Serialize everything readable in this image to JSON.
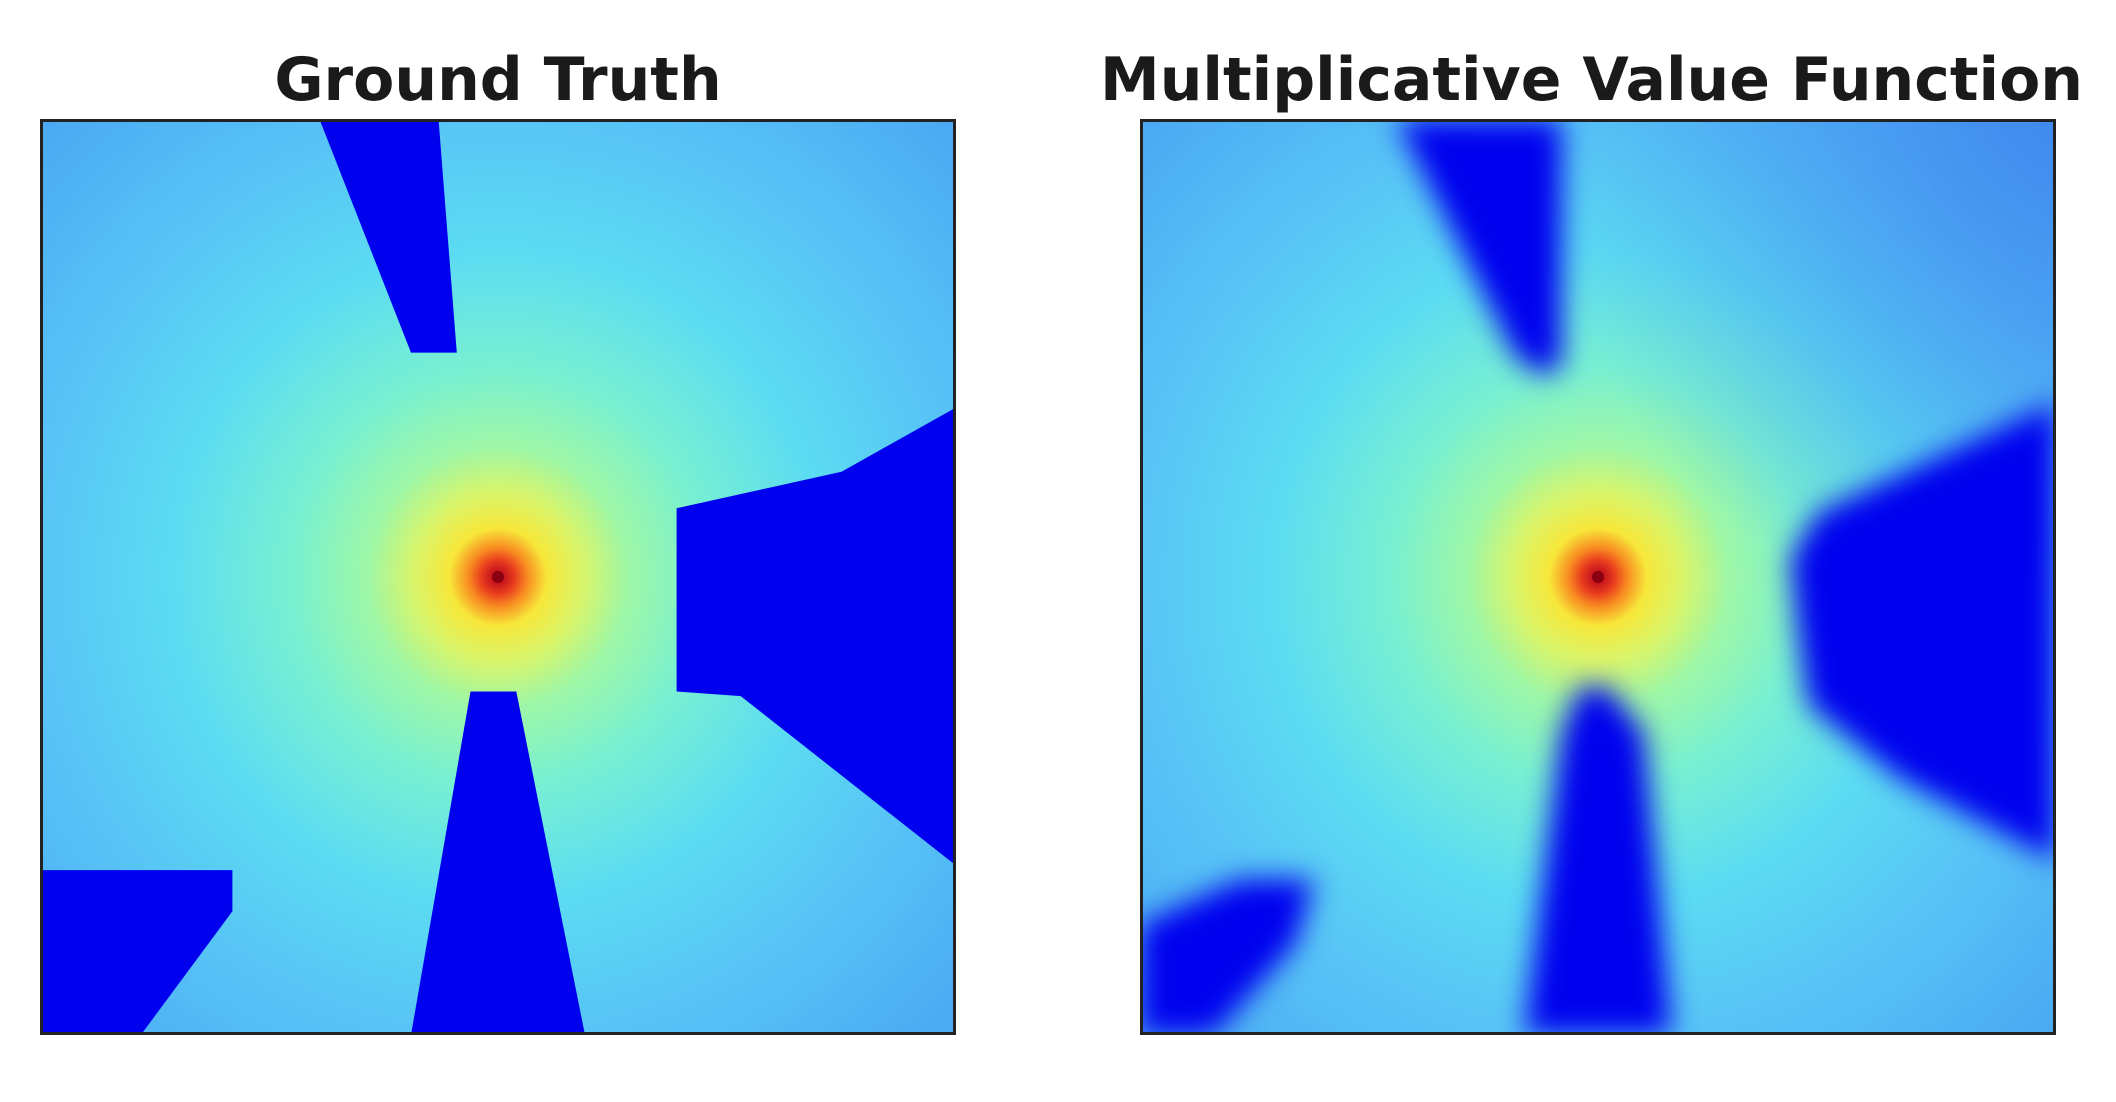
{
  "chart_data": [
    {
      "type": "heatmap",
      "title": "Ground Truth",
      "colormap": "jet",
      "goal": {
        "x": 0.5,
        "y": 0.5
      },
      "obstacle_color": "#0000ee",
      "obstacles": [
        {
          "label": "top",
          "points": [
            [
              0.305,
              1.0
            ],
            [
              0.435,
              1.0
            ],
            [
              0.455,
              0.745
            ],
            [
              0.405,
              0.745
            ]
          ]
        },
        {
          "label": "right",
          "points": [
            [
              0.695,
              0.575
            ],
            [
              0.875,
              0.615
            ],
            [
              1.0,
              0.685
            ],
            [
              1.0,
              0.185
            ],
            [
              0.765,
              0.37
            ],
            [
              0.695,
              0.375
            ]
          ]
        },
        {
          "label": "bottom",
          "points": [
            [
              0.47,
              0.375
            ],
            [
              0.52,
              0.375
            ],
            [
              0.595,
              0.0
            ],
            [
              0.405,
              0.0
            ]
          ]
        },
        {
          "label": "bottom-left",
          "points": [
            [
              0.0,
              0.18
            ],
            [
              0.21,
              0.18
            ],
            [
              0.21,
              0.135
            ],
            [
              0.11,
              0.0
            ],
            [
              0.0,
              0.0
            ]
          ]
        }
      ],
      "xticks": [],
      "yticks": [],
      "grid": false
    },
    {
      "type": "heatmap",
      "title": "Multiplicative Value Function",
      "colormap": "jet",
      "goal": {
        "x": 0.5,
        "y": 0.5
      },
      "obstacle_color": "#0000ee",
      "obstacles": [
        {
          "label": "top",
          "points": [
            [
              0.28,
              1.0
            ],
            [
              0.46,
              1.0
            ],
            [
              0.46,
              0.73
            ],
            [
              0.44,
              0.72
            ],
            [
              0.41,
              0.74
            ]
          ]
        },
        {
          "label": "right",
          "points": [
            [
              0.72,
              0.43
            ],
            [
              0.73,
              0.36
            ],
            [
              0.83,
              0.28
            ],
            [
              1.0,
              0.19
            ],
            [
              1.0,
              0.69
            ],
            [
              0.74,
              0.57
            ],
            [
              0.71,
              0.52
            ]
          ]
        },
        {
          "label": "bottom",
          "points": [
            [
              0.46,
              0.33
            ],
            [
              0.48,
              0.38
            ],
            [
              0.51,
              0.38
            ],
            [
              0.55,
              0.33
            ],
            [
              0.58,
              0.0
            ],
            [
              0.42,
              0.0
            ]
          ]
        },
        {
          "label": "bottom-left",
          "points": [
            [
              0.0,
              0.12
            ],
            [
              0.11,
              0.17
            ],
            [
              0.19,
              0.17
            ],
            [
              0.17,
              0.1
            ],
            [
              0.08,
              0.0
            ],
            [
              0.0,
              0.0
            ]
          ]
        }
      ],
      "xticks": [],
      "yticks": [],
      "grid": false
    }
  ]
}
